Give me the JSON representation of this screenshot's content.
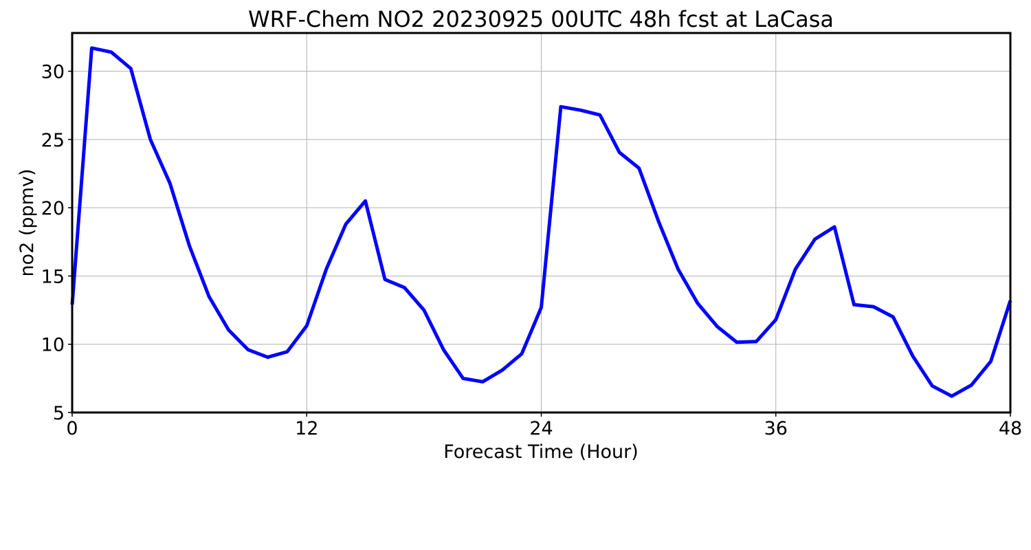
{
  "chart_data": {
    "type": "line",
    "title": "WRF-Chem NO2  20230925 00UTC 48h fcst at LaCasa",
    "xlabel": "Forecast Time (Hour)",
    "ylabel": "no2  (ppmv)",
    "xlim": [
      0,
      48
    ],
    "ylim": [
      5,
      32.8
    ],
    "xticks": [
      0,
      12,
      24,
      36,
      48
    ],
    "yticks": [
      5,
      10,
      15,
      20,
      25,
      30
    ],
    "grid": true,
    "series": [
      {
        "color": "#0000ff",
        "x": [
          0,
          1,
          2,
          3,
          4,
          5,
          6,
          7,
          8,
          9,
          10,
          11,
          12,
          13,
          14,
          15,
          16,
          17,
          18,
          19,
          20,
          21,
          22,
          23,
          24,
          25,
          26,
          27,
          28,
          29,
          30,
          31,
          32,
          33,
          34,
          35,
          36,
          37,
          38,
          39,
          40,
          41,
          42,
          43,
          44,
          45,
          46,
          47,
          48
        ],
        "values": [
          12.9,
          31.7,
          31.4,
          30.2,
          25.0,
          21.8,
          17.2,
          13.5,
          11.05,
          9.6,
          9.05,
          9.45,
          11.35,
          15.5,
          18.8,
          20.5,
          14.75,
          14.15,
          12.5,
          9.6,
          7.5,
          7.25,
          8.1,
          9.3,
          12.7,
          27.4,
          27.15,
          26.8,
          24.05,
          22.9,
          19.0,
          15.5,
          13.0,
          11.3,
          10.15,
          10.2,
          11.8,
          15.5,
          17.7,
          18.6,
          12.9,
          12.75,
          12.0,
          9.15,
          6.95,
          6.2,
          7.0,
          8.75,
          13.2
        ]
      }
    ]
  }
}
